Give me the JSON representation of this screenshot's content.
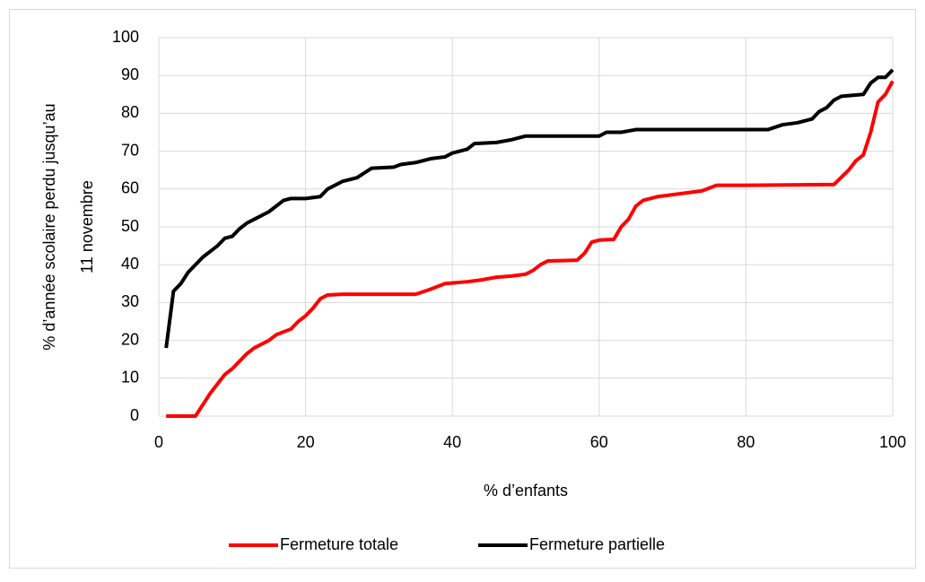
{
  "chart_data": {
    "type": "line",
    "xlabel": "% d’enfants",
    "ylabel": [
      "% d’année scolaire perdu jusqu’au",
      "11 novembre"
    ],
    "xlim": [
      0,
      100
    ],
    "xticks": [
      0,
      20,
      40,
      60,
      80,
      100
    ],
    "ylim": [
      0,
      100
    ],
    "yticks": [
      0,
      10,
      20,
      30,
      40,
      50,
      60,
      70,
      80,
      90,
      100
    ],
    "grid": true,
    "legend": "bottom",
    "series": [
      {
        "name": "Fermeture totale",
        "color": "#ff0000",
        "x": [
          1,
          5,
          6,
          7,
          8,
          9,
          10,
          11,
          12,
          13,
          14,
          15,
          16,
          18,
          19,
          20,
          21,
          22,
          23,
          25,
          35,
          37,
          39,
          42,
          44,
          46,
          48,
          50,
          51,
          52,
          53,
          57,
          58,
          59,
          60,
          62,
          63,
          64,
          65,
          66,
          68,
          70,
          72,
          74,
          76,
          80,
          92,
          94,
          95,
          96,
          97,
          98,
          99,
          100
        ],
        "values": [
          0,
          0,
          3,
          6,
          8.5,
          11,
          12.5,
          14.5,
          16.5,
          18,
          19,
          20,
          21.5,
          23,
          25,
          26.5,
          28.5,
          31,
          32,
          32.2,
          32.2,
          33.5,
          35,
          35.5,
          36,
          36.7,
          37,
          37.5,
          38.5,
          40,
          41,
          41.2,
          43,
          46,
          46.5,
          46.7,
          50,
          52,
          55.5,
          57,
          58,
          58.5,
          59,
          59.5,
          61,
          61,
          61.2,
          65,
          67.5,
          69,
          75,
          83,
          85,
          88.5
        ]
      },
      {
        "name": "Fermeture partielle",
        "color": "#000000",
        "x": [
          1,
          2,
          3,
          4,
          5,
          6,
          7,
          8,
          9,
          10,
          11,
          12,
          13,
          14,
          15,
          16,
          17,
          18,
          20,
          22,
          23,
          25,
          27,
          29,
          32,
          33,
          35,
          37,
          39,
          40,
          42,
          43,
          46,
          48,
          50,
          60,
          61,
          63,
          65,
          75,
          83,
          85,
          87,
          89,
          90,
          91,
          92,
          93,
          96,
          97,
          98,
          99,
          100
        ],
        "values": [
          18,
          33,
          35,
          38,
          40,
          42,
          43.5,
          45,
          47,
          47.5,
          49.5,
          51,
          52,
          53,
          54,
          55.5,
          57,
          57.5,
          57.5,
          58,
          60,
          62,
          63,
          65.5,
          65.8,
          66.5,
          67,
          68,
          68.5,
          69.5,
          70.5,
          72,
          72.3,
          73,
          74,
          74,
          75,
          75,
          75.7,
          75.7,
          75.7,
          77,
          77.5,
          78.5,
          80.5,
          81.5,
          83.5,
          84.5,
          85,
          88,
          89.5,
          89.5,
          91.5
        ]
      }
    ]
  }
}
